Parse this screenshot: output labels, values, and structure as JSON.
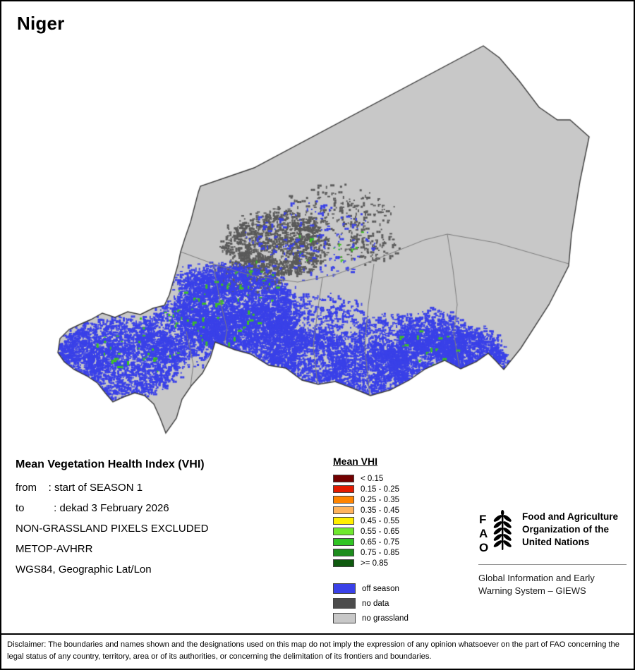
{
  "title": "Niger",
  "info": {
    "heading": "Mean Vegetation Health Index (VHI)",
    "lines": [
      "from    : start of SEASON 1",
      "to          : dekad 3 February 2026",
      "NON-GRASSLAND PIXELS EXCLUDED",
      "METOP-AVHRR",
      "WGS84, Geographic Lat/Lon"
    ]
  },
  "legend": {
    "title": "Mean VHI",
    "classes": [
      {
        "label": "< 0.15",
        "color": "#730000"
      },
      {
        "label": "0.15 - 0.25",
        "color": "#e31b00"
      },
      {
        "label": "0.25 - 0.35",
        "color": "#ff8400"
      },
      {
        "label": "0.35 - 0.45",
        "color": "#ffb35c"
      },
      {
        "label": "0.45 - 0.55",
        "color": "#ffee00"
      },
      {
        "label": "0.55 - 0.65",
        "color": "#6fe82e"
      },
      {
        "label": "0.65 - 0.75",
        "color": "#30c424"
      },
      {
        "label": "0.75 - 0.85",
        "color": "#1d8c1d"
      },
      {
        "label": ">= 0.85",
        "color": "#0f5a0f"
      }
    ],
    "extra": [
      {
        "label": "off season",
        "color": "#3a41e8"
      },
      {
        "label": "no data",
        "color": "#4c4c4c"
      },
      {
        "label": "no grassland",
        "color": "#c8c8c8"
      }
    ]
  },
  "map": {
    "country": "Niger",
    "colors": {
      "no_grassland": "#c8c8c8",
      "no_data": "#5a5a5a",
      "off_season": "#3a41e8",
      "vegetation": "#3ec41e",
      "country_border": "#3d3d3d",
      "admin_border": "#7d7d7d"
    }
  },
  "fao": {
    "logo_letters": [
      "F",
      "A",
      "O"
    ],
    "org_name": "Food and Agriculture\nOrganization of the\nUnited Nations",
    "giews": "Global Information and Early\nWarning System – GIEWS"
  },
  "disclaimer": "Disclaimer: The boundaries and names shown and the designations used on this map do not imply the expression of any opinion whatsoever on the part of FAO concerning the legal status of any country, territory, area or of its authorities, or concerning the delimitation of its frontiers and boundaries."
}
